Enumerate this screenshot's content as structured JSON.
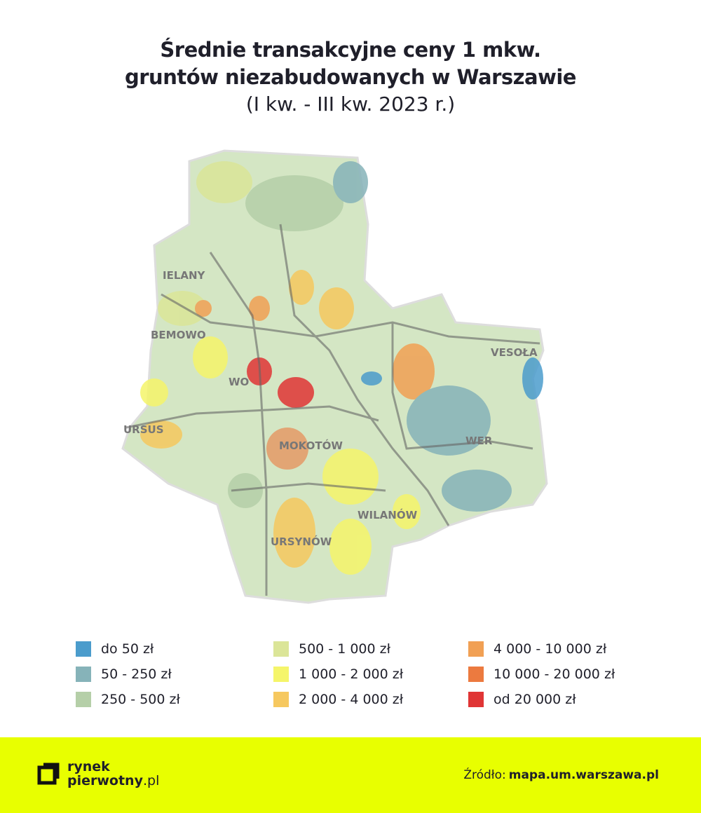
{
  "header": {
    "title_lines": [
      "Średnie transakcyjne ceny 1 mkw.",
      "gruntów niezabudowanych w Warszawie"
    ],
    "subtitle": "(I kw. - III kw. 2023 r.)"
  },
  "map": {
    "labels": [
      "IELANY",
      "BEMOWO",
      "WO",
      "MOKOTÓW",
      "URSUS",
      "VESOŁA",
      "WER",
      "WILANÓW",
      "URSYNÓW"
    ]
  },
  "legend": {
    "items": [
      {
        "label": "do 50 zł",
        "color": "#4b9ccc"
      },
      {
        "label": "50 - 250 zł",
        "color": "#86b3b9"
      },
      {
        "label": "250 - 500 zł",
        "color": "#b5cfa8"
      },
      {
        "label": "500 - 1 000 zł",
        "color": "#dbe598"
      },
      {
        "label": "1 000 - 2 000 zł",
        "color": "#f5f56a"
      },
      {
        "label": "2 000 - 4 000 zł",
        "color": "#f6c85f"
      },
      {
        "label": "4 000 - 10 000 zł",
        "color": "#f1a054"
      },
      {
        "label": "10 000 - 20 000 zł",
        "color": "#ec7a3f"
      },
      {
        "label": "od 20 000 zł",
        "color": "#e03535"
      }
    ]
  },
  "footer": {
    "logo": {
      "line1": "rynek",
      "line2": "pierwotny",
      "suffix": ".pl"
    },
    "source": {
      "label": "Źródło:",
      "link": "mapa.um.warszawa.pl"
    }
  }
}
